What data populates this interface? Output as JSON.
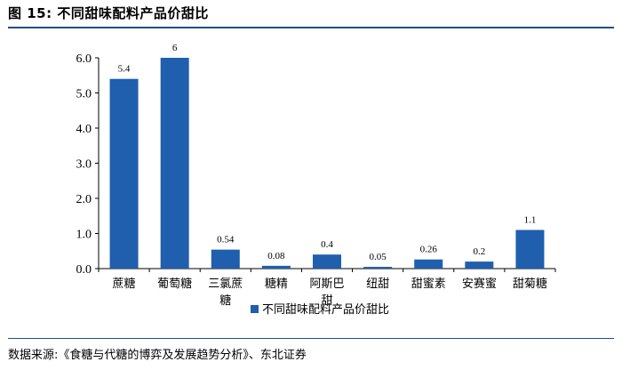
{
  "figure": {
    "title": "图 15:  不同甜味配料产品价甜比",
    "source": "数据来源:《食糖与代糖的博弈及发展趋势分析》、东北证券"
  },
  "chart_data": {
    "type": "bar",
    "categories": [
      "蔗糖",
      "葡萄糖",
      "三氯蔗糖",
      "糖精",
      "阿斯巴甜",
      "纽甜",
      "甜蜜素",
      "安赛蜜",
      "甜菊糖"
    ],
    "category_lines": [
      [
        "蔗糖"
      ],
      [
        "葡萄糖"
      ],
      [
        "三氯蔗",
        "糖"
      ],
      [
        "糖精"
      ],
      [
        "阿斯巴",
        "甜"
      ],
      [
        "纽甜"
      ],
      [
        "甜蜜素"
      ],
      [
        "安赛蜜"
      ],
      [
        "甜菊糖"
      ]
    ],
    "series": [
      {
        "name": "不同甜味配料产品价甜比",
        "values": [
          5.4,
          6,
          0.54,
          0.08,
          0.4,
          0.05,
          0.26,
          0.2,
          1.1
        ],
        "labels": [
          "5.4",
          "6",
          "0.54",
          "0.08",
          "0.4",
          "0.05",
          "0.26",
          "0.2",
          "1.1"
        ]
      }
    ],
    "yticks": [
      "0.0",
      "1.0",
      "2.0",
      "3.0",
      "4.0",
      "5.0",
      "6.0"
    ],
    "ylim": [
      0,
      6
    ],
    "legend_position": "bottom",
    "grid": false,
    "color": "#1f5fad"
  }
}
